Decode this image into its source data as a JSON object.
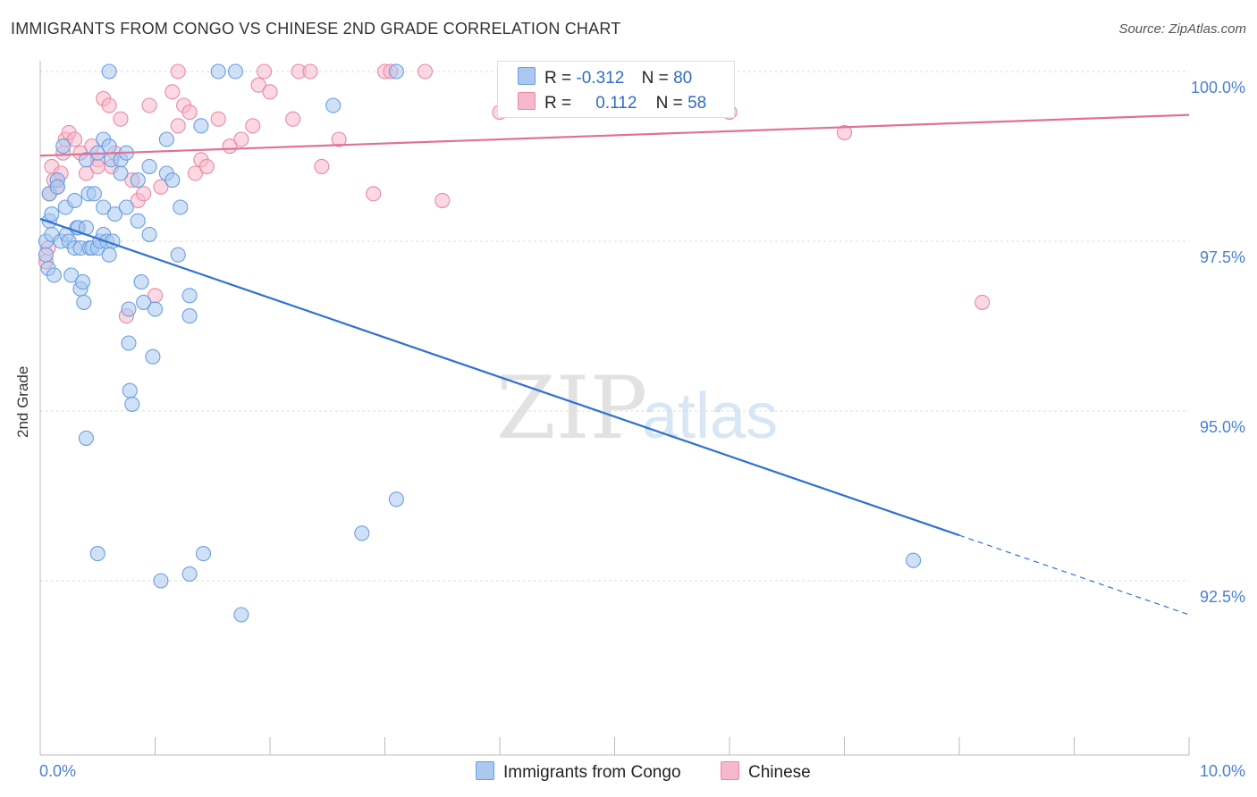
{
  "title": "IMMIGRANTS FROM CONGO VS CHINESE 2ND GRADE CORRELATION CHART",
  "source": "Source: ZipAtlas.com",
  "watermark": {
    "zip": "ZIP",
    "atlas": "atlas"
  },
  "legend": {
    "rows": [
      {
        "r_label": "R =",
        "r_value": "-0.312",
        "n_label": "N =",
        "n_value": "80",
        "color": "#aac8f0",
        "border": "#6a9ee0"
      },
      {
        "r_label": "R =",
        "r_value": "0.112",
        "n_label": "N =",
        "n_value": "58",
        "color": "#f7b8cb",
        "border": "#e88aa6"
      }
    ]
  },
  "bottom_legend": [
    {
      "label": "Immigrants from Congo",
      "color": "#aac8f0",
      "border": "#6a9ee0"
    },
    {
      "label": "Chinese",
      "color": "#f7b8cb",
      "border": "#e88aa6"
    }
  ],
  "chart_data": {
    "type": "scatter",
    "title": "IMMIGRANTS FROM CONGO VS CHINESE 2ND GRADE CORRELATION CHART",
    "xlabel": "",
    "ylabel": "2nd Grade",
    "xlim": [
      0,
      10
    ],
    "ylim": [
      90.2,
      100.5
    ],
    "x_tick_labels": [
      "0.0%",
      "10.0%"
    ],
    "y_ticks": [
      92.5,
      95.0,
      97.5,
      100.0
    ],
    "y_tick_labels": [
      "92.5%",
      "95.0%",
      "97.5%",
      "100.0%"
    ],
    "grid": true,
    "series": [
      {
        "name": "Immigrants from Congo",
        "color": "#6a9ee0",
        "fill": "#aac8f0",
        "trend": {
          "x": [
            0.0,
            8.0
          ],
          "y": [
            97.83,
            93.17
          ],
          "dashed_to": [
            10.0,
            92.0
          ]
        },
        "points": [
          [
            0.05,
            97.3
          ],
          [
            0.05,
            97.5
          ],
          [
            0.07,
            97.1
          ],
          [
            0.08,
            98.2
          ],
          [
            0.08,
            97.8
          ],
          [
            0.1,
            97.9
          ],
          [
            0.1,
            97.6
          ],
          [
            0.12,
            97.0
          ],
          [
            0.15,
            98.4
          ],
          [
            0.15,
            98.3
          ],
          [
            0.18,
            97.5
          ],
          [
            0.2,
            98.9
          ],
          [
            0.22,
            98.0
          ],
          [
            0.23,
            97.6
          ],
          [
            0.25,
            97.5
          ],
          [
            0.27,
            97.0
          ],
          [
            0.3,
            98.1
          ],
          [
            0.3,
            97.4
          ],
          [
            0.32,
            97.7
          ],
          [
            0.33,
            97.7
          ],
          [
            0.35,
            97.4
          ],
          [
            0.35,
            96.8
          ],
          [
            0.37,
            96.9
          ],
          [
            0.38,
            96.6
          ],
          [
            0.4,
            98.7
          ],
          [
            0.42,
            98.2
          ],
          [
            0.4,
            97.7
          ],
          [
            0.43,
            97.4
          ],
          [
            0.45,
            97.4
          ],
          [
            0.47,
            98.2
          ],
          [
            0.5,
            98.8
          ],
          [
            0.5,
            97.4
          ],
          [
            0.52,
            97.5
          ],
          [
            0.55,
            99.0
          ],
          [
            0.55,
            98.0
          ],
          [
            0.55,
            97.6
          ],
          [
            0.58,
            97.5
          ],
          [
            0.6,
            98.9
          ],
          [
            0.6,
            97.3
          ],
          [
            0.62,
            98.7
          ],
          [
            0.63,
            97.5
          ],
          [
            0.65,
            97.9
          ],
          [
            0.7,
            98.7
          ],
          [
            0.7,
            98.5
          ],
          [
            0.75,
            98.8
          ],
          [
            0.75,
            98.0
          ],
          [
            0.77,
            96.5
          ],
          [
            0.77,
            96.0
          ],
          [
            0.78,
            95.3
          ],
          [
            0.8,
            95.1
          ],
          [
            0.85,
            98.4
          ],
          [
            0.85,
            97.8
          ],
          [
            0.88,
            96.9
          ],
          [
            0.9,
            96.6
          ],
          [
            0.95,
            98.6
          ],
          [
            0.95,
            97.6
          ],
          [
            0.98,
            95.8
          ],
          [
            1.0,
            96.5
          ],
          [
            1.1,
            98.5
          ],
          [
            1.1,
            99.0
          ],
          [
            1.15,
            98.4
          ],
          [
            1.2,
            97.3
          ],
          [
            1.22,
            98.0
          ],
          [
            1.3,
            96.7
          ],
          [
            1.3,
            96.4
          ],
          [
            1.4,
            99.2
          ],
          [
            0.6,
            100.0
          ],
          [
            1.55,
            100.0
          ],
          [
            1.7,
            100.0
          ],
          [
            2.55,
            99.5
          ],
          [
            3.1,
            100.0
          ],
          [
            0.4,
            94.6
          ],
          [
            0.5,
            92.9
          ],
          [
            1.05,
            92.5
          ],
          [
            1.3,
            92.6
          ],
          [
            1.42,
            92.9
          ],
          [
            1.75,
            92.0
          ],
          [
            2.8,
            93.2
          ],
          [
            3.1,
            93.7
          ],
          [
            7.6,
            92.8
          ]
        ]
      },
      {
        "name": "Chinese",
        "color": "#e88aa6",
        "fill": "#f7b8cb",
        "trend": {
          "x": [
            0.0,
            10.0
          ],
          "y": [
            98.76,
            99.36
          ]
        },
        "points": [
          [
            0.05,
            97.2
          ],
          [
            0.07,
            97.4
          ],
          [
            0.08,
            98.2
          ],
          [
            0.1,
            98.6
          ],
          [
            0.12,
            98.4
          ],
          [
            0.15,
            98.3
          ],
          [
            0.18,
            98.5
          ],
          [
            0.2,
            98.8
          ],
          [
            0.22,
            99.0
          ],
          [
            0.25,
            99.1
          ],
          [
            0.3,
            99.0
          ],
          [
            0.35,
            98.8
          ],
          [
            0.4,
            98.5
          ],
          [
            0.45,
            98.9
          ],
          [
            0.5,
            98.7
          ],
          [
            0.5,
            98.6
          ],
          [
            0.55,
            99.6
          ],
          [
            0.6,
            99.5
          ],
          [
            0.62,
            98.6
          ],
          [
            0.65,
            98.8
          ],
          [
            0.7,
            99.3
          ],
          [
            0.75,
            96.4
          ],
          [
            0.8,
            98.4
          ],
          [
            0.85,
            98.1
          ],
          [
            0.9,
            98.2
          ],
          [
            0.95,
            99.5
          ],
          [
            1.0,
            96.7
          ],
          [
            1.05,
            98.3
          ],
          [
            1.15,
            99.7
          ],
          [
            1.2,
            99.2
          ],
          [
            1.25,
            99.5
          ],
          [
            1.3,
            99.4
          ],
          [
            1.35,
            98.5
          ],
          [
            1.4,
            98.7
          ],
          [
            1.45,
            98.6
          ],
          [
            1.55,
            99.3
          ],
          [
            1.65,
            98.9
          ],
          [
            1.75,
            99.0
          ],
          [
            1.85,
            99.2
          ],
          [
            1.9,
            99.8
          ],
          [
            1.95,
            100.0
          ],
          [
            2.0,
            99.7
          ],
          [
            2.2,
            99.3
          ],
          [
            2.25,
            100.0
          ],
          [
            2.35,
            100.0
          ],
          [
            2.45,
            98.6
          ],
          [
            2.6,
            99.0
          ],
          [
            2.9,
            98.2
          ],
          [
            3.0,
            100.0
          ],
          [
            3.05,
            100.0
          ],
          [
            3.35,
            100.0
          ],
          [
            3.5,
            98.1
          ],
          [
            4.0,
            99.4
          ],
          [
            4.5,
            100.0
          ],
          [
            6.0,
            99.4
          ],
          [
            7.0,
            99.1
          ],
          [
            8.2,
            96.6
          ],
          [
            1.2,
            100.0
          ]
        ]
      }
    ]
  }
}
